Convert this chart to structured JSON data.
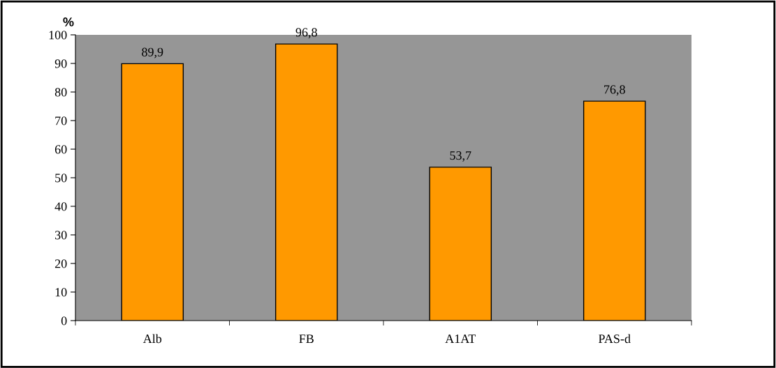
{
  "chart_data": {
    "type": "bar",
    "ylabel": "%",
    "categories": [
      "Alb",
      "FB",
      "A1AT",
      "PAS-d"
    ],
    "values": [
      89.9,
      96.8,
      53.7,
      76.8
    ],
    "value_labels": [
      "89,9",
      "96,8",
      "53,7",
      "76,8"
    ],
    "color": "#ff9900",
    "ylim": [
      0,
      100
    ],
    "yticks": [
      0,
      10,
      20,
      30,
      40,
      50,
      60,
      70,
      80,
      90,
      100
    ],
    "grid": false,
    "legend": false
  }
}
